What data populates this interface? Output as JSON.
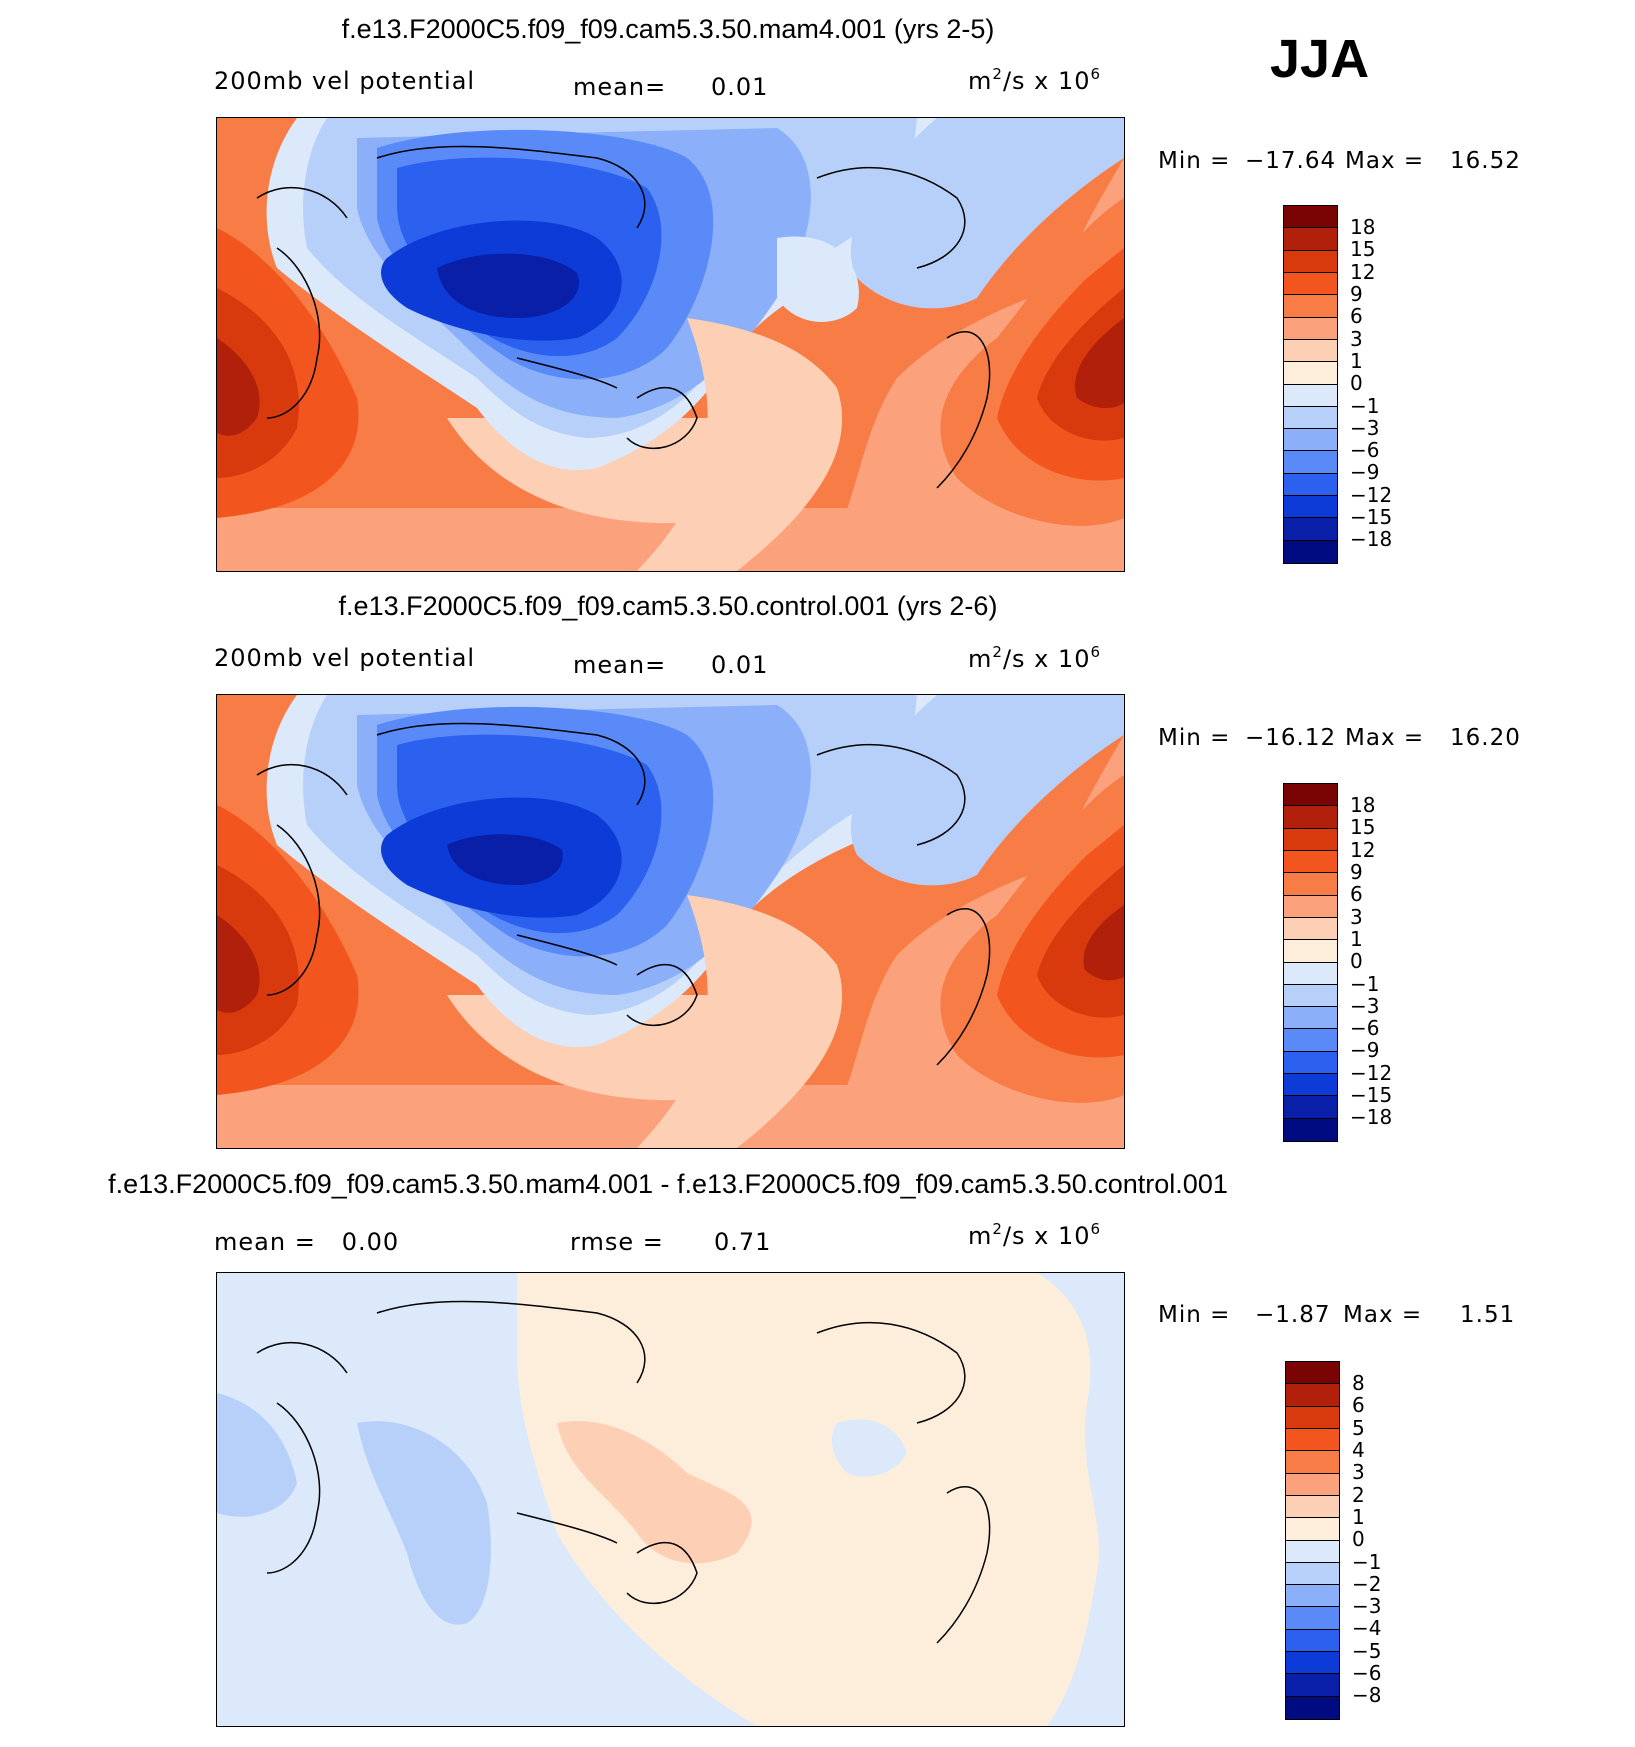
{
  "season": "JJA",
  "panels": [
    {
      "title": "f.e13.F2000C5.f09_f09.cam5.3.50.mam4.001 (yrs 2-5)",
      "left_label": "200mb vel potential",
      "stat1_label": "mean=",
      "stat1_value": "0.01",
      "units": "m²/s x 10⁶",
      "min_label": "Min =",
      "min_value": "−17.64",
      "max_label": "Max =",
      "max_value": "16.52",
      "colorbar_levels": [
        "18",
        "15",
        "12",
        "9",
        "6",
        "3",
        "1",
        "0",
        "−1",
        "−3",
        "−6",
        "−9",
        "−12",
        "−15",
        "−18"
      ]
    },
    {
      "title": "f.e13.F2000C5.f09_f09.cam5.3.50.control.001 (yrs 2-6)",
      "left_label": "200mb vel potential",
      "stat1_label": "mean=",
      "stat1_value": "0.01",
      "units": "m²/s x 10⁶",
      "min_label": "Min =",
      "min_value": "−16.12",
      "max_label": "Max =",
      "max_value": "16.20",
      "colorbar_levels": [
        "18",
        "15",
        "12",
        "9",
        "6",
        "3",
        "1",
        "0",
        "−1",
        "−3",
        "−6",
        "−9",
        "−12",
        "−15",
        "−18"
      ]
    },
    {
      "title": "f.e13.F2000C5.f09_f09.cam5.3.50.mam4.001 - f.e13.F2000C5.f09_f09.cam5.3.50.control.001",
      "left_label": "mean =   0.00",
      "stat1_label": "rmse =",
      "stat1_value": "0.71",
      "units": "m²/s x 10⁶",
      "min_label": "Min =",
      "min_value": "−1.87",
      "max_label": "Max =",
      "max_value": "1.51",
      "colorbar_levels": [
        "8",
        "6",
        "5",
        "4",
        "3",
        "2",
        "1",
        "0",
        "−1",
        "−2",
        "−3",
        "−4",
        "−5",
        "−6",
        "−8"
      ]
    }
  ],
  "colors": {
    "scale": [
      "#7a0403",
      "#b0200a",
      "#d83a0e",
      "#f2561e",
      "#f77c45",
      "#fba27c",
      "#fdd0b6",
      "#fdeedc",
      "#dce9fb",
      "#b7d0fa",
      "#8bb0f9",
      "#5a8af8",
      "#2c61ef",
      "#0d3bd8",
      "#0a1fa8",
      "#000b82"
    ]
  }
}
